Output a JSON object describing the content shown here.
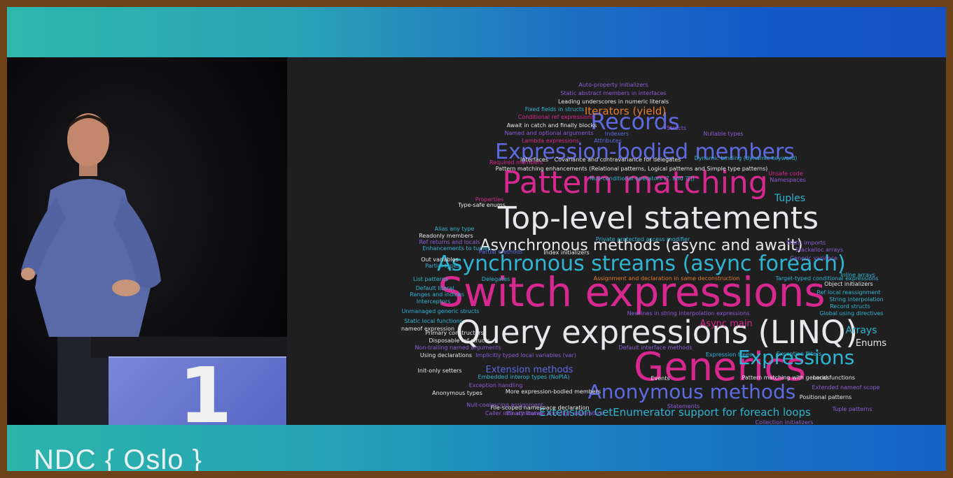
{
  "event": {
    "logo_text": "NDC { Oslo }"
  },
  "podium": {
    "digit": "1"
  },
  "colors": {
    "magenta": "#d6288f",
    "white": "#e8e8ec",
    "blue": "#5e6ae0",
    "teal": "#2fb5d4",
    "orange": "#e27c2a",
    "purple": "#8a5ed6"
  },
  "word_cloud": {
    "words": [
      {
        "text": "Switch expressions",
        "color": "magenta",
        "size": 58
      },
      {
        "text": "Query expressions (LINQ)",
        "color": "white",
        "size": 45
      },
      {
        "text": "Generics",
        "color": "magenta",
        "size": 56
      },
      {
        "text": "Top-level statements",
        "color": "white",
        "size": 44
      },
      {
        "text": "Pattern matching",
        "color": "magenta",
        "size": 44
      },
      {
        "text": "Asynchronous streams (async foreach)",
        "color": "teal",
        "size": 30
      },
      {
        "text": "Expression-bodied members",
        "color": "blue",
        "size": 30
      },
      {
        "text": "Records",
        "color": "blue",
        "size": 32
      },
      {
        "text": "Anonymous methods",
        "color": "blue",
        "size": 28
      },
      {
        "text": "Expressions",
        "color": "teal",
        "size": 28
      },
      {
        "text": "Asynchronous methods (async and await)",
        "color": "white",
        "size": 22
      },
      {
        "text": "Extension GetEnumerator support for foreach loops",
        "color": "teal",
        "size": 15
      },
      {
        "text": "Iterators (yield)",
        "color": "orange",
        "size": 15
      },
      {
        "text": "Tuples",
        "color": "teal",
        "size": 14
      },
      {
        "text": "Arrays",
        "color": "teal",
        "size": 14
      },
      {
        "text": "Enums",
        "color": "white",
        "size": 13
      },
      {
        "text": "Async main",
        "color": "magenta",
        "size": 13
      },
      {
        "text": "Extension methods",
        "color": "blue",
        "size": 13
      },
      {
        "text": "Auto-property initializers",
        "color": "purple",
        "size": 8
      },
      {
        "text": "Static abstract members in interfaces",
        "color": "purple",
        "size": 8
      },
      {
        "text": "Leading underscores in numeric literals",
        "color": "white",
        "size": 8
      },
      {
        "text": "Fixed fields in structs",
        "color": "teal",
        "size": 8
      },
      {
        "text": "Conditional ref expressions",
        "color": "magenta",
        "size": 8
      },
      {
        "text": "Await in catch and finally blocks",
        "color": "white",
        "size": 8
      },
      {
        "text": "Named and optional arguments",
        "color": "purple",
        "size": 8
      },
      {
        "text": "Lambda expressions",
        "color": "magenta",
        "size": 8
      },
      {
        "text": "Indexers",
        "color": "blue",
        "size": 8
      },
      {
        "text": "Attributes",
        "color": "blue",
        "size": 8
      },
      {
        "text": "Structs",
        "color": "purple",
        "size": 8
      },
      {
        "text": "Nullable types",
        "color": "purple",
        "size": 8
      },
      {
        "text": "Required members",
        "color": "magenta",
        "size": 8
      },
      {
        "text": "Interfaces",
        "color": "white",
        "size": 8
      },
      {
        "text": "Covariance and contravariance for delegates",
        "color": "white",
        "size": 8
      },
      {
        "text": "Dynamic binding (dynamic keyword)",
        "color": "teal",
        "size": 8
      },
      {
        "text": "Unsafe code",
        "color": "magenta",
        "size": 8
      },
      {
        "text": "Pattern matching enhancements (Relational patterns, Logical patterns and Simple type patterns)",
        "color": "white",
        "size": 8
      },
      {
        "text": "Null-conditional operators (?. and ?[])",
        "color": "teal",
        "size": 8
      },
      {
        "text": "Namespaces",
        "color": "purple",
        "size": 8
      },
      {
        "text": "Properties",
        "color": "magenta",
        "size": 8
      },
      {
        "text": "Type-safe enums",
        "color": "white",
        "size": 8
      },
      {
        "text": "Alias any type",
        "color": "teal",
        "size": 8
      },
      {
        "text": "Readonly members",
        "color": "white",
        "size": 8
      },
      {
        "text": "Ref returns and locals",
        "color": "purple",
        "size": 8
      },
      {
        "text": "Enhancements to tuples",
        "color": "teal",
        "size": 8
      },
      {
        "text": "Private protected access modifier",
        "color": "teal",
        "size": 8
      },
      {
        "text": "Static imports",
        "color": "purple",
        "size": 8
      },
      {
        "text": "Stackalloc arrays",
        "color": "purple",
        "size": 8
      },
      {
        "text": "Generic variance",
        "color": "purple",
        "size": 8
      },
      {
        "text": "Partial methods",
        "color": "blue",
        "size": 8
      },
      {
        "text": "Index initializers",
        "color": "white",
        "size": 8
      },
      {
        "text": "Out variables",
        "color": "white",
        "size": 8
      },
      {
        "text": "Partial types",
        "color": "teal",
        "size": 8
      },
      {
        "text": "List patterns",
        "color": "teal",
        "size": 8
      },
      {
        "text": "Delegates",
        "color": "teal",
        "size": 8
      },
      {
        "text": "Assignment and declaration in same deconstruction",
        "color": "orange",
        "size": 8
      },
      {
        "text": "Target-typed conditional expressions",
        "color": "teal",
        "size": 8
      },
      {
        "text": "Inline arrays",
        "color": "teal",
        "size": 8
      },
      {
        "text": "Object initializers",
        "color": "white",
        "size": 8
      },
      {
        "text": "Default literal",
        "color": "teal",
        "size": 8
      },
      {
        "text": "Ref local reassignment",
        "color": "teal",
        "size": 8
      },
      {
        "text": "String interpolation",
        "color": "teal",
        "size": 8
      },
      {
        "text": "Ranges and indices",
        "color": "teal",
        "size": 8
      },
      {
        "text": "Interceptors",
        "color": "teal",
        "size": 8
      },
      {
        "text": "Record structs",
        "color": "teal",
        "size": 8
      },
      {
        "text": "Global using directives",
        "color": "teal",
        "size": 8
      },
      {
        "text": "Unmanaged generic structs",
        "color": "teal",
        "size": 8
      },
      {
        "text": "Newlines in string interpolation expressions",
        "color": "purple",
        "size": 8
      },
      {
        "text": "Static local functions",
        "color": "teal",
        "size": 8
      },
      {
        "text": "nameof expression",
        "color": "white",
        "size": 8
      },
      {
        "text": "Primary constructors",
        "color": "white",
        "size": 8
      },
      {
        "text": "Disposable ref structs",
        "color": "white",
        "size": 8
      },
      {
        "text": "Non-trailing named arguments",
        "color": "purple",
        "size": 8
      },
      {
        "text": "Default interface methods",
        "color": "purple",
        "size": 8
      },
      {
        "text": "Using declarations",
        "color": "white",
        "size": 8
      },
      {
        "text": "Implicitly typed local variables (var)",
        "color": "purple",
        "size": 8
      },
      {
        "text": "Expression trees",
        "color": "teal",
        "size": 8
      },
      {
        "text": "Exception filters",
        "color": "teal",
        "size": 8
      },
      {
        "text": "Init-only setters",
        "color": "white",
        "size": 8
      },
      {
        "text": "Embedded interop types (NoPIA)",
        "color": "teal",
        "size": 8
      },
      {
        "text": "Events",
        "color": "white",
        "size": 8
      },
      {
        "text": "Pattern matching with generics",
        "color": "white",
        "size": 8
      },
      {
        "text": "Local functions",
        "color": "white",
        "size": 8
      },
      {
        "text": "Exception handling",
        "color": "purple",
        "size": 8
      },
      {
        "text": "Extended nameof scope",
        "color": "purple",
        "size": 8
      },
      {
        "text": "Anonymous types",
        "color": "white",
        "size": 8
      },
      {
        "text": "More expression-bodied members",
        "color": "white",
        "size": 8
      },
      {
        "text": "Positional patterns",
        "color": "white",
        "size": 8
      },
      {
        "text": "File-scoped namespace declaration",
        "color": "white",
        "size": 8
      },
      {
        "text": "Null-coalescing assignment",
        "color": "purple",
        "size": 8
      },
      {
        "text": "Statements",
        "color": "purple",
        "size": 8
      },
      {
        "text": "Tuple patterns",
        "color": "purple",
        "size": 8
      },
      {
        "text": "Caller info attributes",
        "color": "purple",
        "size": 8
      },
      {
        "text": "Binary literals and digit separators",
        "color": "purple",
        "size": 8
      },
      {
        "text": "Collection initializers",
        "color": "purple",
        "size": 8
      }
    ]
  }
}
